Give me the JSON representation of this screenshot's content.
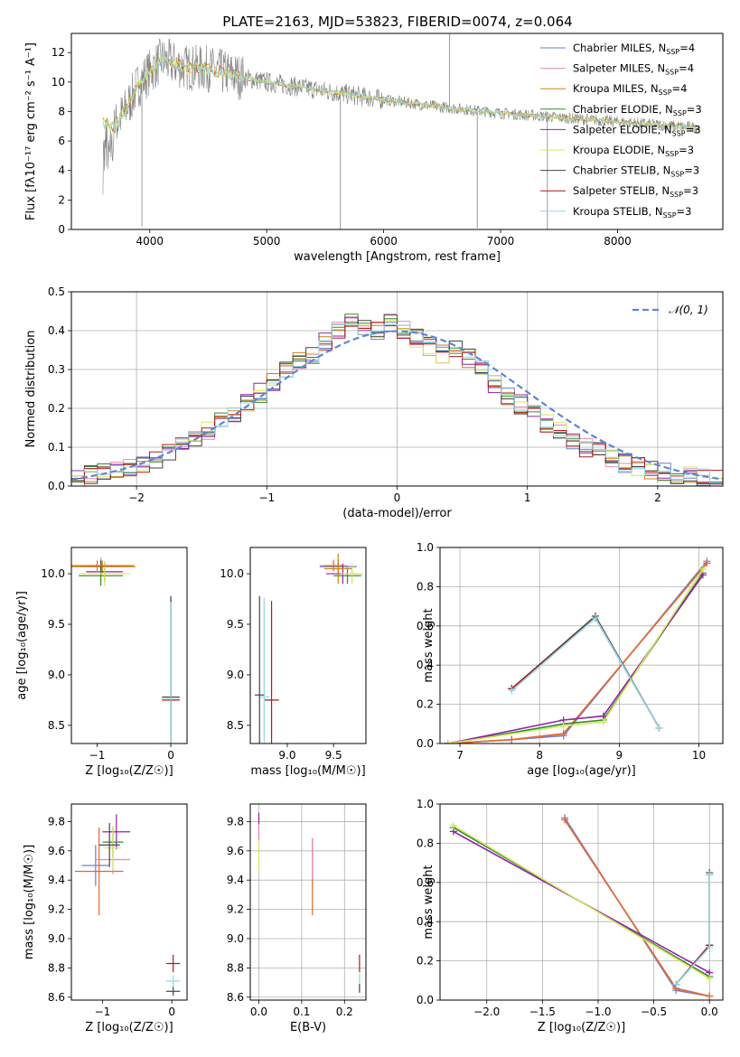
{
  "title": "PLATE=2163, MJD=53823, FIBERID=0074, z=0.064",
  "colors": [
    "#6a7fd1",
    "#e889b4",
    "#c8860b",
    "#2f8a2f",
    "#9420a8",
    "#d4e85a",
    "#444444",
    "#b11919",
    "#8fd9e6",
    "#e06a2c"
  ],
  "chart_data": [
    {
      "id": "spectrum",
      "type": "line",
      "xlabel": "wavelength [Angstrom, rest frame]",
      "ylabel": "Flux [fλ10⁻¹⁷ erg cm⁻² s⁻¹ A⁻¹]",
      "xlim": [
        3330,
        8900
      ],
      "ylim": [
        0,
        13.3
      ],
      "xticks": [
        4000,
        5000,
        6000,
        7000,
        8000
      ],
      "yticks": [
        0,
        2,
        4,
        6,
        8,
        10,
        12
      ],
      "legend_position": "top-right",
      "legend": [
        {
          "name": "Chabrier MILES, N",
          "sub": "SSP",
          "suffix": "=4",
          "color": "#6a7fd1"
        },
        {
          "name": "Salpeter MILES, N",
          "sub": "SSP",
          "suffix": "=4",
          "color": "#e889b4"
        },
        {
          "name": "Kroupa MILES, N",
          "sub": "SSP",
          "suffix": "=4",
          "color": "#c8860b"
        },
        {
          "name": "Chabrier ELODIE, N",
          "sub": "SSP",
          "suffix": "=3",
          "color": "#2f8a2f"
        },
        {
          "name": "Salpeter ELODIE, N",
          "sub": "SSP",
          "suffix": "=3",
          "color": "#9420a8"
        },
        {
          "name": "Kroupa ELODIE, N",
          "sub": "SSP",
          "suffix": "=3",
          "color": "#d4e85a"
        },
        {
          "name": "Chabrier STELIB, N",
          "sub": "SSP",
          "suffix": "=3",
          "color": "#444444"
        },
        {
          "name": "Salpeter STELIB, N",
          "sub": "SSP",
          "suffix": "=3",
          "color": "#b11919"
        },
        {
          "name": "Kroupa STELIB, N",
          "sub": "SSP",
          "suffix": "=3",
          "color": "#8fd9e6"
        }
      ],
      "data_color": "#808080",
      "continuum": [
        [
          3600,
          7.2
        ],
        [
          3700,
          7.0
        ],
        [
          3800,
          8.2
        ],
        [
          3900,
          9.8
        ],
        [
          4000,
          10.7
        ],
        [
          4100,
          11.5
        ],
        [
          4300,
          11.0
        ],
        [
          4500,
          10.9
        ],
        [
          4800,
          10.3
        ],
        [
          5000,
          10.0
        ],
        [
          5500,
          9.4
        ],
        [
          6000,
          8.8
        ],
        [
          6500,
          8.3
        ],
        [
          7000,
          7.9
        ],
        [
          7500,
          7.6
        ],
        [
          8000,
          7.3
        ],
        [
          8500,
          7.0
        ],
        [
          8700,
          6.9
        ]
      ]
    },
    {
      "id": "residuals",
      "type": "step",
      "xlabel": "(data-model)/error",
      "ylabel": "Normed distribution",
      "xlim": [
        -2.5,
        2.5
      ],
      "ylim": [
        0,
        0.5
      ],
      "xticks": [
        -2,
        -1,
        0,
        1,
        2
      ],
      "yticks": [
        0.0,
        0.1,
        0.2,
        0.3,
        0.4,
        0.5
      ],
      "gaussian_label": "𝒩(0, 1)",
      "gaussian_color": "#5b86d6",
      "legend_position": "top-right",
      "bin_start": -2.5,
      "bin_width": 0.1,
      "base": [
        0.02,
        0.03,
        0.04,
        0.045,
        0.05,
        0.06,
        0.07,
        0.085,
        0.1,
        0.12,
        0.14,
        0.165,
        0.19,
        0.215,
        0.24,
        0.27,
        0.3,
        0.32,
        0.34,
        0.37,
        0.4,
        0.42,
        0.41,
        0.4,
        0.42,
        0.4,
        0.38,
        0.36,
        0.34,
        0.35,
        0.33,
        0.3,
        0.26,
        0.23,
        0.21,
        0.19,
        0.16,
        0.14,
        0.12,
        0.1,
        0.09,
        0.07,
        0.06,
        0.05,
        0.04,
        0.035,
        0.03,
        0.025,
        0.02,
        0.02
      ]
    },
    {
      "id": "age-vs-Z",
      "type": "errorbar",
      "xlabel": "Z [log₁₀(Z/Z☉)]",
      "ylabel": "age  [log₁₀(age/yr)]",
      "xlim": [
        -1.35,
        0.22
      ],
      "ylim": [
        8.32,
        10.26
      ],
      "xticks": [
        -1,
        0
      ],
      "yticks": [
        8.5,
        9.0,
        9.5,
        10.0
      ],
      "points": [
        {
          "x": -0.95,
          "y": 10.08,
          "xerr": 0.35,
          "yerr": 0.08,
          "c": "#6a7fd1"
        },
        {
          "x": -0.95,
          "y": 10.08,
          "xerr": 0.4,
          "yerr": 0.08,
          "c": "#e889b4"
        },
        {
          "x": -0.93,
          "y": 10.07,
          "xerr": 0.45,
          "yerr": 0.06,
          "c": "#c8860b"
        },
        {
          "x": -0.9,
          "y": 10.02,
          "xerr": 0.25,
          "yerr": 0.1,
          "c": "#9420a8"
        },
        {
          "x": -0.95,
          "y": 9.98,
          "xerr": 0.3,
          "yerr": 0.1,
          "c": "#2f8a2f"
        },
        {
          "x": -0.9,
          "y": 10.0,
          "xerr": 0.35,
          "yerr": 0.12,
          "c": "#d4e85a"
        },
        {
          "x": -0.95,
          "y": 10.08,
          "xerr": 0.2,
          "yerr": 0.05,
          "c": "#444444"
        },
        {
          "x": -1.0,
          "y": 10.08,
          "xerr": 0.5,
          "yerr": 0.05,
          "c": "#e06a2c"
        },
        {
          "x": 0.0,
          "y": 8.75,
          "xerr": 0.12,
          "yerr": 1.0,
          "c": "#b11919"
        },
        {
          "x": 0.0,
          "y": 8.78,
          "xerr": 0.12,
          "yerr": 1.0,
          "c": "#444444"
        },
        {
          "x": 0.0,
          "y": 8.77,
          "xerr": 0.12,
          "yerr": 0.95,
          "c": "#8fd9e6"
        }
      ]
    },
    {
      "id": "age-vs-mass",
      "type": "errorbar",
      "xlabel": "mass [log₁₀(M/M☉)]",
      "ylabel": "",
      "xlim": [
        8.6,
        9.85
      ],
      "ylim": [
        8.32,
        10.26
      ],
      "xticks": [
        9.0,
        9.5
      ],
      "yticks": [
        8.5,
        9.0,
        9.5,
        10.0
      ],
      "points": [
        {
          "x": 9.5,
          "y": 10.08,
          "xerr": 0.15,
          "yerr": 0.06,
          "c": "#e889b4"
        },
        {
          "x": 9.55,
          "y": 10.07,
          "xerr": 0.2,
          "yerr": 0.07,
          "c": "#6a7fd1"
        },
        {
          "x": 9.6,
          "y": 10.0,
          "xerr": 0.18,
          "yerr": 0.1,
          "c": "#9420a8"
        },
        {
          "x": 9.65,
          "y": 9.98,
          "xerr": 0.15,
          "yerr": 0.08,
          "c": "#2f8a2f"
        },
        {
          "x": 9.7,
          "y": 10.0,
          "xerr": 0.12,
          "yerr": 0.1,
          "c": "#d4e85a"
        },
        {
          "x": 9.5,
          "y": 10.08,
          "xerr": 0.1,
          "yerr": 0.05,
          "c": "#e06a2c"
        },
        {
          "x": 9.55,
          "y": 10.05,
          "xerr": 0.15,
          "yerr": 0.15,
          "c": "#c8860b"
        },
        {
          "x": 8.83,
          "y": 8.75,
          "xerr": 0.08,
          "yerr": 0.98,
          "c": "#b11919"
        },
        {
          "x": 8.75,
          "y": 8.78,
          "xerr": 0.06,
          "yerr": 0.98,
          "c": "#8fd9e6"
        },
        {
          "x": 8.7,
          "y": 8.8,
          "xerr": 0.05,
          "yerr": 0.98,
          "c": "#444444"
        }
      ]
    },
    {
      "id": "massweight-vs-age",
      "type": "line",
      "xlabel": "age  [log₁₀(age/yr)]",
      "ylabel": "mass weight",
      "xlim": [
        6.75,
        10.3
      ],
      "ylim": [
        0,
        1.0
      ],
      "xticks": [
        7,
        8,
        9,
        10
      ],
      "yticks": [
        0.0,
        0.2,
        0.4,
        0.6,
        0.8,
        1.0
      ],
      "series": [
        {
          "c": "#6a7fd1",
          "x": [
            6.85,
            7.65,
            8.3,
            10.1
          ],
          "y": [
            0.0,
            0.02,
            0.04,
            0.93
          ]
        },
        {
          "c": "#e889b4",
          "x": [
            6.85,
            7.65,
            8.3,
            10.1
          ],
          "y": [
            0.0,
            0.02,
            0.05,
            0.92
          ]
        },
        {
          "c": "#e06a2c",
          "x": [
            6.85,
            7.65,
            8.3,
            10.1
          ],
          "y": [
            0.0,
            0.02,
            0.05,
            0.92
          ]
        },
        {
          "c": "#2f8a2f",
          "x": [
            6.85,
            8.3,
            8.8,
            10.05
          ],
          "y": [
            0.0,
            0.1,
            0.12,
            0.87
          ]
        },
        {
          "c": "#9420a8",
          "x": [
            6.85,
            8.3,
            8.8,
            10.05
          ],
          "y": [
            0.0,
            0.12,
            0.14,
            0.86
          ]
        },
        {
          "c": "#d4e85a",
          "x": [
            6.85,
            8.3,
            8.8,
            10.05
          ],
          "y": [
            0.0,
            0.09,
            0.11,
            0.89
          ]
        },
        {
          "c": "#444444",
          "x": [
            7.65,
            8.7,
            9.5
          ],
          "y": [
            0.28,
            0.65,
            0.08
          ]
        },
        {
          "c": "#b11919",
          "x": [
            7.65,
            8.7,
            9.5
          ],
          "y": [
            0.28,
            0.64,
            0.08
          ]
        },
        {
          "c": "#8fd9e6",
          "x": [
            7.65,
            8.7,
            9.5
          ],
          "y": [
            0.27,
            0.64,
            0.08
          ]
        }
      ]
    },
    {
      "id": "mass-vs-Z",
      "type": "errorbar",
      "xlabel": "Z [log₁₀(Z/Z☉)]",
      "ylabel": "mass [log₁₀(M/M☉)]",
      "xlim": [
        -1.45,
        0.22
      ],
      "ylim": [
        8.58,
        9.92
      ],
      "xticks": [
        -1,
        0
      ],
      "yticks": [
        8.6,
        8.8,
        9.0,
        9.2,
        9.4,
        9.6,
        9.8
      ],
      "points": [
        {
          "x": -1.1,
          "y": 9.5,
          "xerr": 0.2,
          "yerr": 0.14,
          "c": "#6a7fd1"
        },
        {
          "x": -1.05,
          "y": 9.46,
          "xerr": 0.35,
          "yerr": 0.3,
          "c": "#e06a2c"
        },
        {
          "x": -0.85,
          "y": 9.54,
          "xerr": 0.25,
          "yerr": 0.1,
          "c": "#e889b4"
        },
        {
          "x": -0.8,
          "y": 9.73,
          "xerr": 0.2,
          "yerr": 0.12,
          "c": "#9420a8"
        },
        {
          "x": -0.85,
          "y": 9.66,
          "xerr": 0.15,
          "yerr": 0.1,
          "c": "#2f8a2f"
        },
        {
          "x": -0.85,
          "y": 9.62,
          "xerr": 0.12,
          "yerr": 0.15,
          "c": "#d4e85a"
        },
        {
          "x": -0.9,
          "y": 9.64,
          "xerr": 0.15,
          "yerr": 0.15,
          "c": "#444444"
        },
        {
          "x": 0.02,
          "y": 8.83,
          "xerr": 0.1,
          "yerr": 0.06,
          "c": "#b11919"
        },
        {
          "x": 0.02,
          "y": 8.71,
          "xerr": 0.1,
          "yerr": 0.04,
          "c": "#8fd9e6"
        },
        {
          "x": 0.02,
          "y": 8.64,
          "xerr": 0.1,
          "yerr": 0.03,
          "c": "#444444"
        }
      ]
    },
    {
      "id": "mass-vs-ebv",
      "type": "errorbar",
      "xlabel": "E(B-V)",
      "ylabel": "",
      "xlim": [
        -0.02,
        0.25
      ],
      "ylim": [
        8.58,
        9.92
      ],
      "xticks": [
        0.0,
        0.1,
        0.2
      ],
      "yticks": [
        8.6,
        8.8,
        9.0,
        9.2,
        9.4,
        9.6,
        9.8
      ],
      "points": [
        {
          "x": 0.0,
          "y": 9.62,
          "xerr": 0.0,
          "yerr": 0.16,
          "c": "#d4e85a"
        },
        {
          "x": 0.0,
          "y": 9.82,
          "xerr": 0.0,
          "yerr": 0.04,
          "c": "#9420a8"
        },
        {
          "x": 0.0,
          "y": 9.72,
          "xerr": 0.0,
          "yerr": 0.05,
          "c": "#e889b4"
        },
        {
          "x": 0.125,
          "y": 9.42,
          "xerr": 0.0,
          "yerr": 0.26,
          "c": "#e06a2c"
        },
        {
          "x": 0.125,
          "y": 9.55,
          "xerr": 0.0,
          "yerr": 0.14,
          "c": "#e889b4"
        },
        {
          "x": 0.235,
          "y": 8.83,
          "xerr": 0.0,
          "yerr": 0.06,
          "c": "#b11919"
        },
        {
          "x": 0.235,
          "y": 8.71,
          "xerr": 0.0,
          "yerr": 0.05,
          "c": "#8fd9e6"
        },
        {
          "x": 0.235,
          "y": 8.66,
          "xerr": 0.0,
          "yerr": 0.03,
          "c": "#444444"
        }
      ]
    },
    {
      "id": "massweight-vs-Z",
      "type": "line",
      "xlabel": "Z [log₁₀(Z/Z☉)]",
      "ylabel": "mass weight",
      "xlim": [
        -2.42,
        0.12
      ],
      "ylim": [
        0,
        1.0
      ],
      "xticks": [
        -2.0,
        -1.5,
        -1.0,
        -0.5,
        0.0
      ],
      "yticks": [
        0.0,
        0.2,
        0.4,
        0.6,
        0.8,
        1.0
      ],
      "series": [
        {
          "c": "#6a7fd1",
          "x": [
            -1.3,
            -0.3,
            0.0
          ],
          "y": [
            0.93,
            0.05,
            0.02
          ]
        },
        {
          "c": "#e889b4",
          "x": [
            -1.3,
            -0.3,
            0.0
          ],
          "y": [
            0.92,
            0.06,
            0.02
          ]
        },
        {
          "c": "#e06a2c",
          "x": [
            -1.3,
            -0.3,
            0.0
          ],
          "y": [
            0.92,
            0.06,
            0.02
          ]
        },
        {
          "c": "#2f8a2f",
          "x": [
            -2.3,
            0.0
          ],
          "y": [
            0.88,
            0.12
          ]
        },
        {
          "c": "#9420a8",
          "x": [
            -2.3,
            0.0
          ],
          "y": [
            0.86,
            0.14
          ]
        },
        {
          "c": "#d4e85a",
          "x": [
            -2.3,
            0.0
          ],
          "y": [
            0.89,
            0.11
          ]
        },
        {
          "c": "#444444",
          "x": [
            -0.3,
            0.0,
            0.0
          ],
          "y": [
            0.08,
            0.28,
            0.65
          ]
        },
        {
          "c": "#b11919",
          "x": [
            -0.3,
            0.0,
            0.0
          ],
          "y": [
            0.08,
            0.28,
            0.64
          ]
        },
        {
          "c": "#8fd9e6",
          "x": [
            -0.3,
            0.0,
            0.0
          ],
          "y": [
            0.08,
            0.27,
            0.64
          ]
        }
      ]
    }
  ]
}
